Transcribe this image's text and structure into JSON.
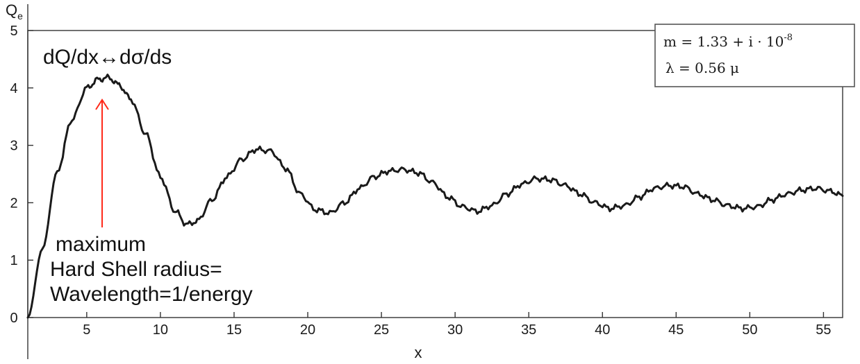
{
  "chart_data": {
    "type": "line",
    "xlabel": "x",
    "ylabel": "Q",
    "ylabel_sub": "e",
    "xlim": [
      1,
      56.3
    ],
    "ylim": [
      0,
      5
    ],
    "xticks": [
      5,
      10,
      15,
      20,
      25,
      30,
      35,
      40,
      45,
      50,
      55
    ],
    "yticks": [
      0,
      1,
      2,
      3,
      4,
      5
    ],
    "grid": false,
    "series": [
      {
        "x": [
          1,
          2,
          3,
          4,
          5,
          5.8,
          6.5,
          7.2,
          8,
          9,
          10,
          11,
          11.8,
          12.5,
          13.5,
          14.5,
          15.5,
          16.5,
          17.5,
          18.5,
          19.5,
          20.5,
          21.5,
          22.5,
          23.5,
          24.5,
          25.5,
          26.5,
          27.5,
          28.5,
          29.5,
          30.5,
          31.5,
          32.5,
          33.5,
          34.5,
          35.5,
          36.5,
          37.5,
          38.5,
          39.5,
          40.5,
          41.5,
          42.5,
          43.5,
          44.5,
          45.5,
          46.5,
          47.5,
          48.5,
          49.5,
          50.5,
          51.5,
          52.5,
          53.5,
          54.5,
          55.5,
          56.3
        ],
        "y": [
          0.0,
          1.2,
          2.55,
          3.45,
          4.0,
          4.15,
          4.18,
          4.05,
          3.8,
          3.2,
          2.45,
          1.85,
          1.62,
          1.68,
          2.05,
          2.45,
          2.75,
          2.93,
          2.9,
          2.6,
          2.15,
          1.88,
          1.82,
          2.0,
          2.25,
          2.45,
          2.55,
          2.58,
          2.52,
          2.35,
          2.1,
          1.93,
          1.85,
          1.95,
          2.15,
          2.32,
          2.42,
          2.4,
          2.3,
          2.15,
          2.0,
          1.9,
          1.95,
          2.1,
          2.25,
          2.3,
          2.28,
          2.15,
          2.05,
          1.95,
          1.9,
          1.93,
          2.05,
          2.15,
          2.22,
          2.25,
          2.2,
          2.12
        ]
      }
    ],
    "legend_box": {
      "line1_prefix": "m  = 1.33 + i · 10",
      "line1_exp": "-8",
      "line2": "λ  = 0.56 μ"
    },
    "annotations": {
      "top": "dQ/dx↔dσ/ds",
      "lines": [
        "maximum",
        "Hard Shell radius=",
        "Wavelength=1/energy"
      ]
    },
    "colors": {
      "curve": "#1a1a1a",
      "arrow": "#ff2a1a",
      "axis": "#333333"
    }
  }
}
